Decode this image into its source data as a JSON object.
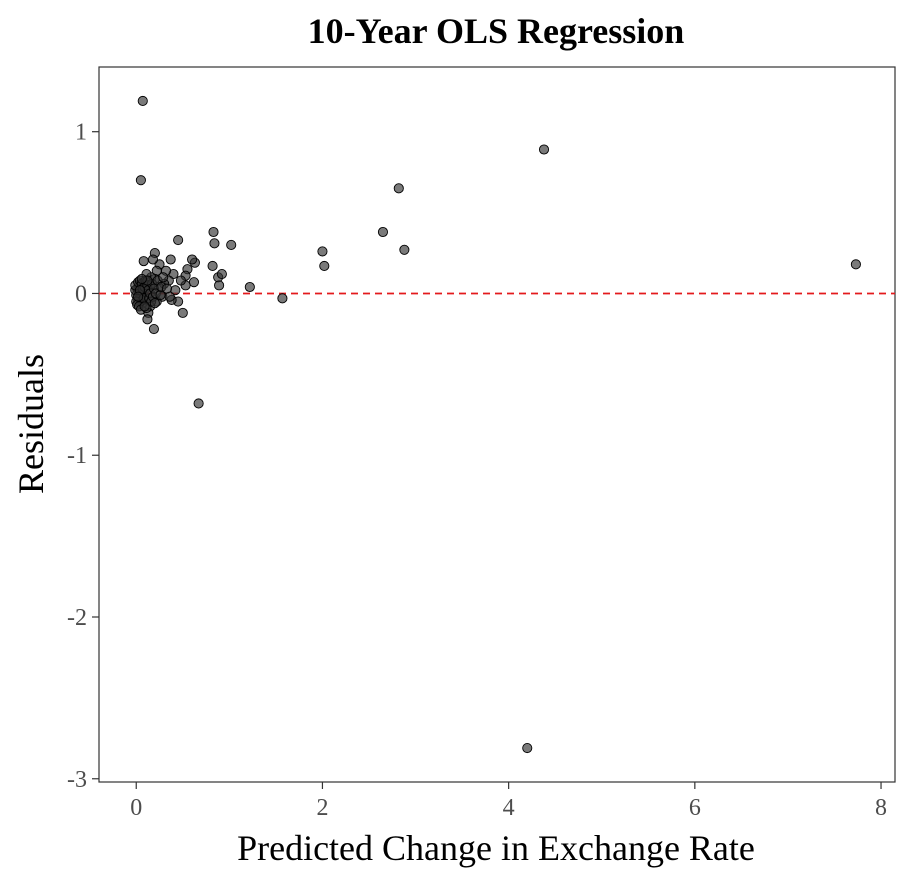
{
  "chart_data": {
    "type": "scatter",
    "title": "10-Year OLS Regression",
    "xlabel": "Predicted Change in Exchange Rate",
    "ylabel": "Residuals",
    "xlim": [
      -0.4,
      8.15
    ],
    "ylim": [
      -3.02,
      1.4
    ],
    "x_ticks": [
      0,
      2,
      4,
      6,
      8
    ],
    "x_tick_labels": [
      "0",
      "2",
      "4",
      "6",
      "8"
    ],
    "y_ticks": [
      1,
      0,
      -1,
      -2,
      -3
    ],
    "y_tick_labels": [
      "1",
      "0",
      "-1",
      "-2",
      "-3"
    ],
    "grid": false,
    "reference_line": {
      "y": 0,
      "style": "dashed",
      "color": "#e41a1c"
    },
    "point_color": "#333333",
    "series": [
      {
        "points": [
          [
            0.07,
            1.19
          ],
          [
            0.05,
            0.7
          ],
          [
            4.38,
            0.89
          ],
          [
            2.82,
            0.65
          ],
          [
            7.73,
            0.18
          ],
          [
            4.2,
            -2.81
          ],
          [
            0.67,
            -0.68
          ],
          [
            2.65,
            0.38
          ],
          [
            2.88,
            0.27
          ],
          [
            2.0,
            0.26
          ],
          [
            2.02,
            0.17
          ],
          [
            1.57,
            -0.03
          ],
          [
            1.22,
            0.04
          ],
          [
            1.02,
            0.3
          ],
          [
            0.83,
            0.38
          ],
          [
            0.84,
            0.31
          ],
          [
            0.82,
            0.17
          ],
          [
            0.88,
            0.1
          ],
          [
            0.92,
            0.12
          ],
          [
            0.89,
            0.05
          ],
          [
            0.45,
            0.33
          ],
          [
            0.63,
            0.19
          ],
          [
            0.6,
            0.21
          ],
          [
            0.62,
            0.07
          ],
          [
            0.55,
            0.15
          ],
          [
            0.53,
            0.11
          ],
          [
            0.53,
            0.05
          ],
          [
            0.5,
            -0.12
          ],
          [
            0.48,
            0.08
          ],
          [
            0.45,
            -0.05
          ],
          [
            0.4,
            0.12
          ],
          [
            0.37,
            0.21
          ],
          [
            0.35,
            0.08
          ],
          [
            0.32,
            0.14
          ],
          [
            0.38,
            -0.04
          ],
          [
            0.42,
            0.02
          ],
          [
            0.3,
            0.06
          ],
          [
            0.28,
            -0.02
          ],
          [
            0.25,
            0.18
          ],
          [
            0.22,
            0.14
          ],
          [
            0.24,
            0.04
          ],
          [
            0.22,
            -0.05
          ],
          [
            0.2,
            0.25
          ],
          [
            0.18,
            0.21
          ],
          [
            0.2,
            0.09
          ],
          [
            0.19,
            -0.22
          ],
          [
            0.16,
            0.1
          ],
          [
            0.15,
            0.05
          ],
          [
            0.15,
            -0.08
          ],
          [
            0.13,
            -0.12
          ],
          [
            0.12,
            -0.16
          ],
          [
            0.11,
            0.12
          ],
          [
            0.1,
            0.03
          ],
          [
            0.1,
            -0.04
          ],
          [
            0.08,
            0.2
          ],
          [
            0.08,
            0.07
          ],
          [
            0.07,
            -0.06
          ],
          [
            0.06,
            0.01
          ],
          [
            0.05,
            -0.02
          ],
          [
            0.05,
            0.04
          ],
          [
            0.04,
            -0.03
          ],
          [
            0.03,
            0.05
          ],
          [
            0.03,
            0.0
          ],
          [
            0.02,
            -0.04
          ],
          [
            0.02,
            0.02
          ],
          [
            0.01,
            0.03
          ],
          [
            0.0,
            -0.01
          ],
          [
            -0.01,
            0.02
          ],
          [
            -0.01,
            0.05
          ],
          [
            0.0,
            -0.05
          ],
          [
            0.01,
            -0.07
          ],
          [
            0.02,
            0.07
          ],
          [
            0.03,
            -0.08
          ],
          [
            0.04,
            0.08
          ],
          [
            0.05,
            -0.1
          ],
          [
            0.06,
            0.06
          ],
          [
            0.07,
            0.03
          ],
          [
            0.08,
            -0.03
          ],
          [
            0.09,
            0.04
          ],
          [
            0.1,
            0.08
          ],
          [
            0.11,
            -0.09
          ],
          [
            0.12,
            0.05
          ],
          [
            0.13,
            0.02
          ],
          [
            0.14,
            -0.03
          ],
          [
            0.15,
            0.0
          ],
          [
            0.16,
            -0.05
          ],
          [
            0.17,
            0.06
          ],
          [
            0.18,
            -0.02
          ],
          [
            0.19,
            0.03
          ],
          [
            0.2,
            -0.06
          ],
          [
            0.21,
            0.0
          ],
          [
            0.23,
            0.08
          ],
          [
            0.26,
            -0.01
          ],
          [
            0.27,
            0.04
          ],
          [
            0.29,
            0.1
          ],
          [
            0.33,
            0.03
          ],
          [
            0.36,
            -0.02
          ],
          [
            0.12,
            0.08
          ],
          [
            0.09,
            -0.08
          ],
          [
            0.06,
            0.09
          ],
          [
            0.04,
            0.02
          ],
          [
            0.02,
            -0.02
          ]
        ]
      }
    ]
  }
}
